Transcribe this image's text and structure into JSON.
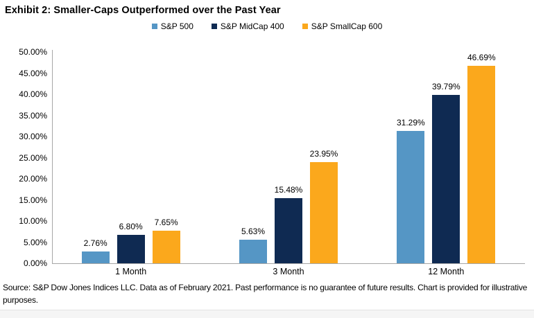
{
  "title": "Exhibit 2: Smaller-Caps Outperformed over the Past Year",
  "footer": "Source: S&P Dow Jones Indices LLC. Data as of February 2021. Past performance is no guarantee of future results. Chart is provided for illustrative purposes.",
  "colors": {
    "axis": "#a6a6a6",
    "text": "#000000",
    "sp500": "#5596C5",
    "midcap": "#0F2A52",
    "smallcap": "#FBA81C"
  },
  "chart_data": {
    "type": "bar",
    "title": "Exhibit 2: Smaller-Caps Outperformed over the Past Year",
    "categories": [
      "1 Month",
      "3 Month",
      "12 Month"
    ],
    "series": [
      {
        "name": "S&P 500",
        "color": "#5596C5",
        "values": [
          2.76,
          5.63,
          31.29
        ],
        "labels": [
          "2.76%",
          "5.63%",
          "31.29%"
        ]
      },
      {
        "name": "S&P MidCap 400",
        "color": "#0F2A52",
        "values": [
          6.8,
          15.48,
          39.79
        ],
        "labels": [
          "6.80%",
          "15.48%",
          "39.79%"
        ]
      },
      {
        "name": "S&P SmallCap 600",
        "color": "#FBA81C",
        "values": [
          7.65,
          23.95,
          46.69
        ],
        "labels": [
          "7.65%",
          "23.95%",
          "46.69%"
        ]
      }
    ],
    "xlabel": "",
    "ylabel": "",
    "ylim": [
      0,
      50
    ],
    "ytick_step": 5,
    "ytick_labels": [
      "0.00%",
      "5.00%",
      "10.00%",
      "15.00%",
      "20.00%",
      "25.00%",
      "30.00%",
      "35.00%",
      "40.00%",
      "45.00%",
      "50.00%"
    ],
    "grid": false,
    "legend_position": "top-center",
    "data_labels": true
  }
}
